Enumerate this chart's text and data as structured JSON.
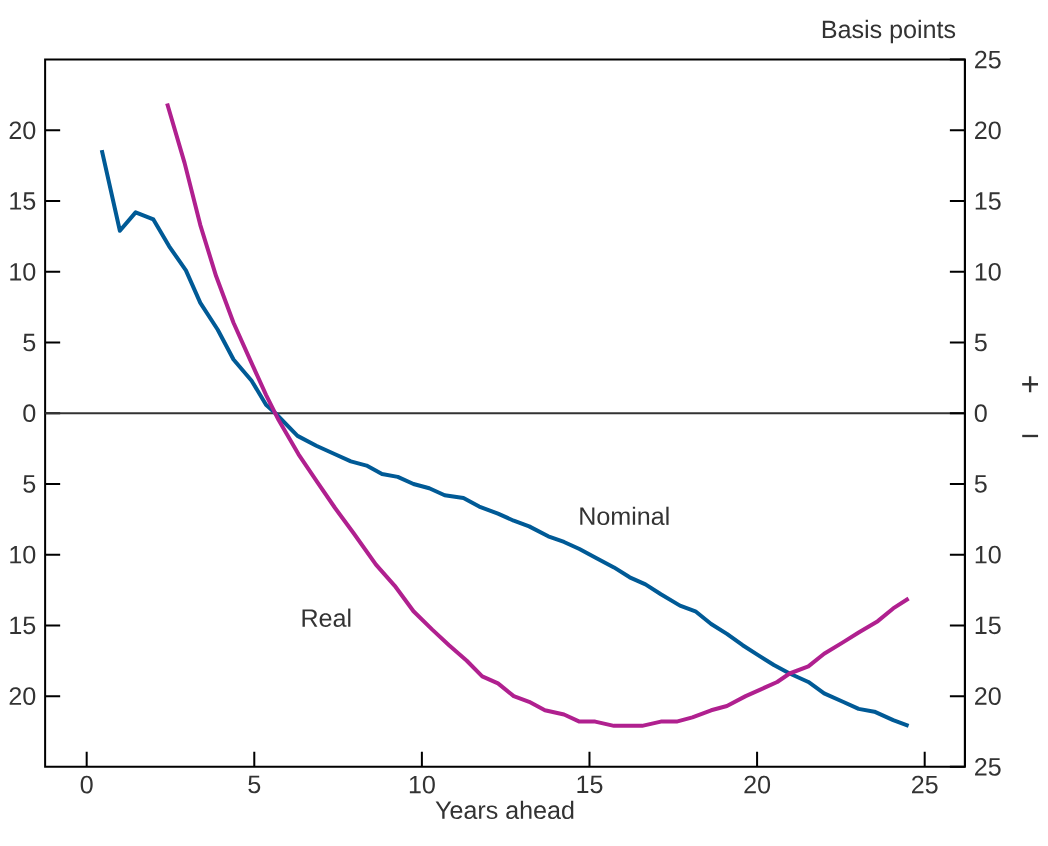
{
  "chart_data": {
    "type": "line",
    "xlabel": "Years ahead",
    "y2label": "Basis points",
    "xlim": [
      -1.24,
      26.2
    ],
    "xticks": [
      0,
      5,
      10,
      15,
      20,
      25
    ],
    "ylim": [
      -25,
      25
    ],
    "yticks": [
      {
        "value": -20,
        "label": "20"
      },
      {
        "value": -15,
        "label": "15"
      },
      {
        "value": -10,
        "label": "10"
      },
      {
        "value": -5,
        "label": "5"
      },
      0,
      5,
      10,
      15,
      20
    ],
    "y2lim": [
      -25,
      25
    ],
    "y2ticks": [
      {
        "value": -25,
        "label": "25"
      },
      {
        "value": -20,
        "label": "20"
      },
      {
        "value": -15,
        "label": "15"
      },
      {
        "value": -10,
        "label": "10"
      },
      {
        "value": -5,
        "label": "5"
      },
      0,
      5,
      10,
      15,
      20,
      25
    ],
    "annotations": [
      "+",
      "−"
    ],
    "ref_lines": [
      {
        "axis": "y",
        "value": 0,
        "color": "#333333"
      }
    ],
    "series": [
      {
        "name": "Nominal",
        "color": "#005a96",
        "x": [
          0.45,
          0.99,
          1.46,
          1.99,
          2.46,
          2.96,
          3.39,
          3.91,
          4.38,
          4.92,
          5.35,
          5.63,
          6.29,
          6.85,
          7.41,
          7.88,
          8.35,
          8.81,
          9.28,
          9.75,
          10.22,
          10.68,
          11.24,
          11.71,
          12.27,
          12.74,
          13.2,
          13.77,
          14.24,
          14.7,
          15.17,
          15.73,
          16.2,
          16.67,
          17.13,
          17.7,
          18.16,
          18.63,
          19.1,
          19.57,
          20.03,
          20.5,
          20.97,
          21.53,
          22.0,
          22.56,
          23.03,
          23.5,
          24.06,
          24.52
        ],
        "values": [
          18.6,
          12.9,
          14.2,
          13.7,
          11.8,
          10.1,
          7.8,
          5.9,
          3.8,
          2.3,
          0.6,
          0,
          -1.6,
          -2.3,
          -2.9,
          -3.4,
          -3.7,
          -4.3,
          -4.5,
          -5.0,
          -5.3,
          -5.8,
          -6.0,
          -6.6,
          -7.1,
          -7.6,
          -8.0,
          -8.7,
          -9.1,
          -9.6,
          -10.2,
          -10.9,
          -11.6,
          -12.1,
          -12.8,
          -13.6,
          -14.0,
          -14.9,
          -15.6,
          -16.4,
          -17.1,
          -17.8,
          -18.4,
          -19.0,
          -19.8,
          -20.4,
          -20.9,
          -21.1,
          -21.7,
          -22.1
        ]
      },
      {
        "name": "Real",
        "color": "#b0208f",
        "x": [
          2.4,
          2.92,
          3.39,
          3.86,
          4.38,
          4.89,
          5.35,
          5.73,
          6.32,
          6.89,
          7.41,
          7.97,
          8.63,
          9.19,
          9.75,
          10.31,
          10.81,
          11.34,
          11.8,
          12.27,
          12.74,
          13.2,
          13.67,
          14.24,
          14.7,
          15.17,
          15.73,
          16.57,
          17.13,
          17.6,
          18.07,
          18.63,
          19.1,
          19.66,
          20.13,
          20.6,
          20.97,
          21.53,
          22.0,
          22.56,
          23.03,
          23.6,
          24.06,
          24.52
        ],
        "values": [
          21.9,
          17.7,
          13.3,
          9.7,
          6.4,
          3.7,
          1.3,
          -0.5,
          -2.9,
          -4.9,
          -6.7,
          -8.5,
          -10.7,
          -12.2,
          -14.0,
          -15.3,
          -16.4,
          -17.5,
          -18.6,
          -19.1,
          -20.0,
          -20.4,
          -21.0,
          -21.3,
          -21.8,
          -21.8,
          -22.1,
          -22.1,
          -21.8,
          -21.8,
          -21.5,
          -21.0,
          -20.7,
          -20.0,
          -19.5,
          -19.0,
          -18.4,
          -17.9,
          -17.0,
          -16.2,
          -15.5,
          -14.7,
          -13.8,
          -13.1
        ]
      }
    ]
  }
}
